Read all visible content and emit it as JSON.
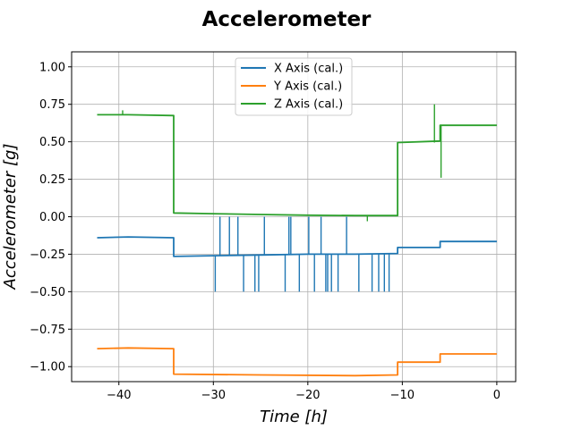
{
  "chart_data": {
    "type": "line",
    "title": "Accelerometer",
    "xlabel": "Time [h]",
    "ylabel": "Accelerometer [g]",
    "xlim": [
      -45,
      2
    ],
    "ylim": [
      -1.1,
      1.1
    ],
    "xticks": [
      -40,
      -30,
      -20,
      -10,
      0
    ],
    "yticks": [
      -1.0,
      -0.75,
      -0.5,
      -0.25,
      0.0,
      0.25,
      0.5,
      0.75,
      1.0
    ],
    "xtick_labels": [
      "−40",
      "−30",
      "−20",
      "−10",
      "0"
    ],
    "ytick_labels": [
      "−1.00",
      "−0.75",
      "−0.50",
      "−0.25",
      "0.00",
      "0.25",
      "0.50",
      "0.75",
      "1.00"
    ],
    "grid": true,
    "legend_position": "top-center",
    "series": [
      {
        "name": "X Axis (cal.)",
        "color": "#1f77b4",
        "x": [
          -42.3,
          -39.0,
          -34.2,
          -34.2,
          -30.0,
          -25.0,
          -20.0,
          -15.0,
          -10.5,
          -10.5,
          -6.0,
          -6.0,
          0.0
        ],
        "y": [
          -0.14,
          -0.135,
          -0.14,
          -0.265,
          -0.26,
          -0.255,
          -0.25,
          -0.25,
          -0.245,
          -0.205,
          -0.205,
          -0.165,
          -0.165
        ],
        "spikes": [
          {
            "x": -29.8,
            "y": -0.5
          },
          {
            "x": -29.3,
            "y": 0.0
          },
          {
            "x": -28.3,
            "y": 0.0
          },
          {
            "x": -27.4,
            "y": 0.0
          },
          {
            "x": -26.8,
            "y": -0.5
          },
          {
            "x": -25.6,
            "y": -0.5
          },
          {
            "x": -25.2,
            "y": -0.5
          },
          {
            "x": -24.6,
            "y": 0.0
          },
          {
            "x": -22.4,
            "y": -0.5
          },
          {
            "x": -22.0,
            "y": 0.0
          },
          {
            "x": -21.8,
            "y": 0.0
          },
          {
            "x": -20.9,
            "y": -0.5
          },
          {
            "x": -19.9,
            "y": 0.0
          },
          {
            "x": -19.3,
            "y": -0.5
          },
          {
            "x": -18.6,
            "y": 0.0
          },
          {
            "x": -18.1,
            "y": -0.5
          },
          {
            "x": -17.9,
            "y": -0.5
          },
          {
            "x": -17.5,
            "y": -0.5
          },
          {
            "x": -16.8,
            "y": -0.5
          },
          {
            "x": -15.9,
            "y": 0.0
          },
          {
            "x": -14.6,
            "y": -0.5
          },
          {
            "x": -13.2,
            "y": -0.5
          },
          {
            "x": -12.5,
            "y": -0.5
          },
          {
            "x": -11.9,
            "y": -0.5
          },
          {
            "x": -11.4,
            "y": -0.5
          }
        ]
      },
      {
        "name": "Y Axis (cal.)",
        "color": "#ff7f0e",
        "x": [
          -42.3,
          -39.0,
          -34.2,
          -34.2,
          -25.0,
          -15.0,
          -10.5,
          -10.5,
          -6.0,
          -6.0,
          0.0
        ],
        "y": [
          -0.88,
          -0.875,
          -0.88,
          -1.05,
          -1.055,
          -1.06,
          -1.055,
          -0.97,
          -0.97,
          -0.915,
          -0.915
        ],
        "spikes": []
      },
      {
        "name": "Z Axis (cal.)",
        "color": "#2ca02c",
        "x": [
          -42.3,
          -39.0,
          -34.2,
          -34.2,
          -30.0,
          -25.0,
          -20.0,
          -15.0,
          -10.5,
          -10.5,
          -6.0,
          -6.0,
          0.0
        ],
        "y": [
          0.68,
          0.68,
          0.675,
          0.025,
          0.02,
          0.015,
          0.01,
          0.008,
          0.008,
          0.495,
          0.505,
          0.61,
          0.61
        ],
        "spikes": [
          {
            "x": -39.6,
            "y": 0.71
          },
          {
            "x": -6.6,
            "y": 0.75
          },
          {
            "x": -5.9,
            "y": 0.26
          },
          {
            "x": -13.7,
            "y": -0.03
          }
        ]
      }
    ]
  }
}
